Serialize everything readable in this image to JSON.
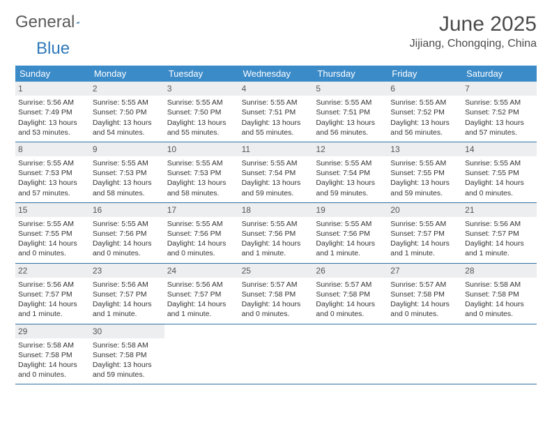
{
  "logo": {
    "text1": "General",
    "text2": "Blue"
  },
  "title": "June 2025",
  "location": "Jijiang, Chongqing, China",
  "colors": {
    "header_bg": "#3b8bc9",
    "header_text": "#ffffff",
    "daynum_bg": "#eceeef",
    "daynum_text": "#555555",
    "week_border": "#2f6fa3",
    "body_text": "#333333",
    "logo_gray": "#5a5a5a",
    "logo_blue": "#2f79b9"
  },
  "calendar": {
    "type": "table",
    "days_of_week": [
      "Sunday",
      "Monday",
      "Tuesday",
      "Wednesday",
      "Thursday",
      "Friday",
      "Saturday"
    ],
    "weeks": [
      [
        {
          "n": "1",
          "sr": "Sunrise: 5:56 AM",
          "ss": "Sunset: 7:49 PM",
          "d1": "Daylight: 13 hours",
          "d2": "and 53 minutes."
        },
        {
          "n": "2",
          "sr": "Sunrise: 5:55 AM",
          "ss": "Sunset: 7:50 PM",
          "d1": "Daylight: 13 hours",
          "d2": "and 54 minutes."
        },
        {
          "n": "3",
          "sr": "Sunrise: 5:55 AM",
          "ss": "Sunset: 7:50 PM",
          "d1": "Daylight: 13 hours",
          "d2": "and 55 minutes."
        },
        {
          "n": "4",
          "sr": "Sunrise: 5:55 AM",
          "ss": "Sunset: 7:51 PM",
          "d1": "Daylight: 13 hours",
          "d2": "and 55 minutes."
        },
        {
          "n": "5",
          "sr": "Sunrise: 5:55 AM",
          "ss": "Sunset: 7:51 PM",
          "d1": "Daylight: 13 hours",
          "d2": "and 56 minutes."
        },
        {
          "n": "6",
          "sr": "Sunrise: 5:55 AM",
          "ss": "Sunset: 7:52 PM",
          "d1": "Daylight: 13 hours",
          "d2": "and 56 minutes."
        },
        {
          "n": "7",
          "sr": "Sunrise: 5:55 AM",
          "ss": "Sunset: 7:52 PM",
          "d1": "Daylight: 13 hours",
          "d2": "and 57 minutes."
        }
      ],
      [
        {
          "n": "8",
          "sr": "Sunrise: 5:55 AM",
          "ss": "Sunset: 7:53 PM",
          "d1": "Daylight: 13 hours",
          "d2": "and 57 minutes."
        },
        {
          "n": "9",
          "sr": "Sunrise: 5:55 AM",
          "ss": "Sunset: 7:53 PM",
          "d1": "Daylight: 13 hours",
          "d2": "and 58 minutes."
        },
        {
          "n": "10",
          "sr": "Sunrise: 5:55 AM",
          "ss": "Sunset: 7:53 PM",
          "d1": "Daylight: 13 hours",
          "d2": "and 58 minutes."
        },
        {
          "n": "11",
          "sr": "Sunrise: 5:55 AM",
          "ss": "Sunset: 7:54 PM",
          "d1": "Daylight: 13 hours",
          "d2": "and 59 minutes."
        },
        {
          "n": "12",
          "sr": "Sunrise: 5:55 AM",
          "ss": "Sunset: 7:54 PM",
          "d1": "Daylight: 13 hours",
          "d2": "and 59 minutes."
        },
        {
          "n": "13",
          "sr": "Sunrise: 5:55 AM",
          "ss": "Sunset: 7:55 PM",
          "d1": "Daylight: 13 hours",
          "d2": "and 59 minutes."
        },
        {
          "n": "14",
          "sr": "Sunrise: 5:55 AM",
          "ss": "Sunset: 7:55 PM",
          "d1": "Daylight: 14 hours",
          "d2": "and 0 minutes."
        }
      ],
      [
        {
          "n": "15",
          "sr": "Sunrise: 5:55 AM",
          "ss": "Sunset: 7:55 PM",
          "d1": "Daylight: 14 hours",
          "d2": "and 0 minutes."
        },
        {
          "n": "16",
          "sr": "Sunrise: 5:55 AM",
          "ss": "Sunset: 7:56 PM",
          "d1": "Daylight: 14 hours",
          "d2": "and 0 minutes."
        },
        {
          "n": "17",
          "sr": "Sunrise: 5:55 AM",
          "ss": "Sunset: 7:56 PM",
          "d1": "Daylight: 14 hours",
          "d2": "and 0 minutes."
        },
        {
          "n": "18",
          "sr": "Sunrise: 5:55 AM",
          "ss": "Sunset: 7:56 PM",
          "d1": "Daylight: 14 hours",
          "d2": "and 1 minute."
        },
        {
          "n": "19",
          "sr": "Sunrise: 5:55 AM",
          "ss": "Sunset: 7:56 PM",
          "d1": "Daylight: 14 hours",
          "d2": "and 1 minute."
        },
        {
          "n": "20",
          "sr": "Sunrise: 5:55 AM",
          "ss": "Sunset: 7:57 PM",
          "d1": "Daylight: 14 hours",
          "d2": "and 1 minute."
        },
        {
          "n": "21",
          "sr": "Sunrise: 5:56 AM",
          "ss": "Sunset: 7:57 PM",
          "d1": "Daylight: 14 hours",
          "d2": "and 1 minute."
        }
      ],
      [
        {
          "n": "22",
          "sr": "Sunrise: 5:56 AM",
          "ss": "Sunset: 7:57 PM",
          "d1": "Daylight: 14 hours",
          "d2": "and 1 minute."
        },
        {
          "n": "23",
          "sr": "Sunrise: 5:56 AM",
          "ss": "Sunset: 7:57 PM",
          "d1": "Daylight: 14 hours",
          "d2": "and 1 minute."
        },
        {
          "n": "24",
          "sr": "Sunrise: 5:56 AM",
          "ss": "Sunset: 7:57 PM",
          "d1": "Daylight: 14 hours",
          "d2": "and 1 minute."
        },
        {
          "n": "25",
          "sr": "Sunrise: 5:57 AM",
          "ss": "Sunset: 7:58 PM",
          "d1": "Daylight: 14 hours",
          "d2": "and 0 minutes."
        },
        {
          "n": "26",
          "sr": "Sunrise: 5:57 AM",
          "ss": "Sunset: 7:58 PM",
          "d1": "Daylight: 14 hours",
          "d2": "and 0 minutes."
        },
        {
          "n": "27",
          "sr": "Sunrise: 5:57 AM",
          "ss": "Sunset: 7:58 PM",
          "d1": "Daylight: 14 hours",
          "d2": "and 0 minutes."
        },
        {
          "n": "28",
          "sr": "Sunrise: 5:58 AM",
          "ss": "Sunset: 7:58 PM",
          "d1": "Daylight: 14 hours",
          "d2": "and 0 minutes."
        }
      ],
      [
        {
          "n": "29",
          "sr": "Sunrise: 5:58 AM",
          "ss": "Sunset: 7:58 PM",
          "d1": "Daylight: 14 hours",
          "d2": "and 0 minutes."
        },
        {
          "n": "30",
          "sr": "Sunrise: 5:58 AM",
          "ss": "Sunset: 7:58 PM",
          "d1": "Daylight: 13 hours",
          "d2": "and 59 minutes."
        },
        null,
        null,
        null,
        null,
        null
      ]
    ]
  }
}
